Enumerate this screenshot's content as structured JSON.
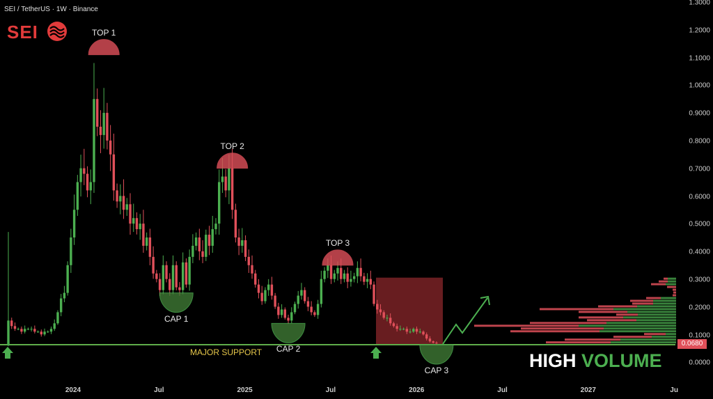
{
  "header": {
    "symbol_line": "SEI / TetherUS · 1W · Binance",
    "logo_text": "SEI"
  },
  "colors": {
    "up": "#4caf50",
    "down": "#e0505a",
    "support": "#5fae4a",
    "top_zone": "#e0505a",
    "cap_zone": "#3f7a35",
    "box": "#7a2226",
    "support_label": "#e6c74a"
  },
  "chart_data": {
    "type": "candlestick",
    "interval": "1W",
    "yaxis": {
      "ticks": [
        "1.3000",
        "1.2000",
        "1.1000",
        "1.0000",
        "0.9000",
        "0.8000",
        "0.7000",
        "0.6000",
        "0.5000",
        "0.4000",
        "0.3000",
        "0.2000",
        "0.1000",
        "0.0000"
      ],
      "ylim": [
        0,
        1.3
      ]
    },
    "xaxis": {
      "ticks": [
        "2024",
        "Jul",
        "2025",
        "Jul",
        "2026",
        "Jul",
        "2027",
        "Ju"
      ]
    },
    "closes": [
      0.15,
      0.13,
      0.12,
      0.12,
      0.11,
      0.12,
      0.12,
      0.12,
      0.11,
      0.11,
      0.1,
      0.11,
      0.11,
      0.12,
      0.14,
      0.18,
      0.23,
      0.25,
      0.35,
      0.45,
      0.55,
      0.65,
      0.7,
      0.68,
      0.62,
      0.65,
      0.95,
      0.85,
      0.82,
      0.9,
      0.8,
      0.75,
      0.62,
      0.58,
      0.6,
      0.55,
      0.57,
      0.5,
      0.52,
      0.48,
      0.5,
      0.42,
      0.45,
      0.38,
      0.32,
      0.3,
      0.26,
      0.35,
      0.3,
      0.26,
      0.35,
      0.27,
      0.26,
      0.36,
      0.28,
      0.38,
      0.42,
      0.45,
      0.4,
      0.38,
      0.46,
      0.42,
      0.48,
      0.5,
      0.65,
      0.67,
      0.62,
      0.7,
      0.55,
      0.45,
      0.42,
      0.44,
      0.38,
      0.35,
      0.32,
      0.28,
      0.25,
      0.22,
      0.26,
      0.28,
      0.24,
      0.2,
      0.17,
      0.19,
      0.16,
      0.15,
      0.18,
      0.21,
      0.24,
      0.26,
      0.22,
      0.2,
      0.18,
      0.17,
      0.21,
      0.3,
      0.33,
      0.35,
      0.3,
      0.32,
      0.34,
      0.3,
      0.32,
      0.29,
      0.3,
      0.31,
      0.34,
      0.31,
      0.29,
      0.3,
      0.28,
      0.21,
      0.19,
      0.18,
      0.16,
      0.16,
      0.14,
      0.13,
      0.12,
      0.12,
      0.12,
      0.11,
      0.11,
      0.12,
      0.11,
      0.11,
      0.1,
      0.085,
      0.075,
      0.07,
      0.068
    ],
    "first_open": 0.06,
    "notable_wicks": [
      {
        "index": 0,
        "high": 0.47
      },
      {
        "index": 26,
        "high": 1.08
      }
    ],
    "last_price": "0.0680",
    "support_level": 0.063,
    "volume_profile": {
      "price_range": [
        0.065,
        0.305
      ],
      "rows_total_buy": [
        [
          18,
          12
        ],
        [
          25,
          12
        ],
        [
          36,
          15
        ],
        [
          13,
          0
        ],
        [
          5,
          0
        ],
        [
          4,
          0
        ],
        [
          5,
          0
        ],
        [
          43,
          22
        ],
        [
          66,
          33
        ],
        [
          63,
          33
        ],
        [
          112,
          56
        ],
        [
          196,
          90
        ],
        [
          140,
          70
        ],
        [
          86,
          55
        ],
        [
          140,
          76
        ],
        [
          128,
          57
        ],
        [
          210,
          100
        ],
        [
          290,
          140
        ],
        [
          223,
          104
        ],
        [
          238,
          110
        ],
        [
          46,
          15
        ],
        [
          90,
          35
        ],
        [
          160,
          80
        ],
        [
          187,
          94
        ]
      ]
    },
    "annotations": {
      "tops": [
        {
          "label": "TOP 1",
          "index": 29,
          "price": 1.14
        },
        {
          "label": "TOP 2",
          "index": 68,
          "price": 0.73
        },
        {
          "label": "TOP 3",
          "index": 100,
          "price": 0.38
        }
      ],
      "caps": [
        {
          "label": "CAP 1",
          "index": 51,
          "price": 0.25
        },
        {
          "label": "CAP 2",
          "index": 85,
          "price": 0.14
        },
        {
          "label": "CAP 3",
          "index": 130,
          "price": 0.063
        }
      ],
      "support_label": "MAJOR SUPPORT",
      "headline": {
        "white": "HIGH",
        "green": "VOLUME"
      }
    }
  }
}
